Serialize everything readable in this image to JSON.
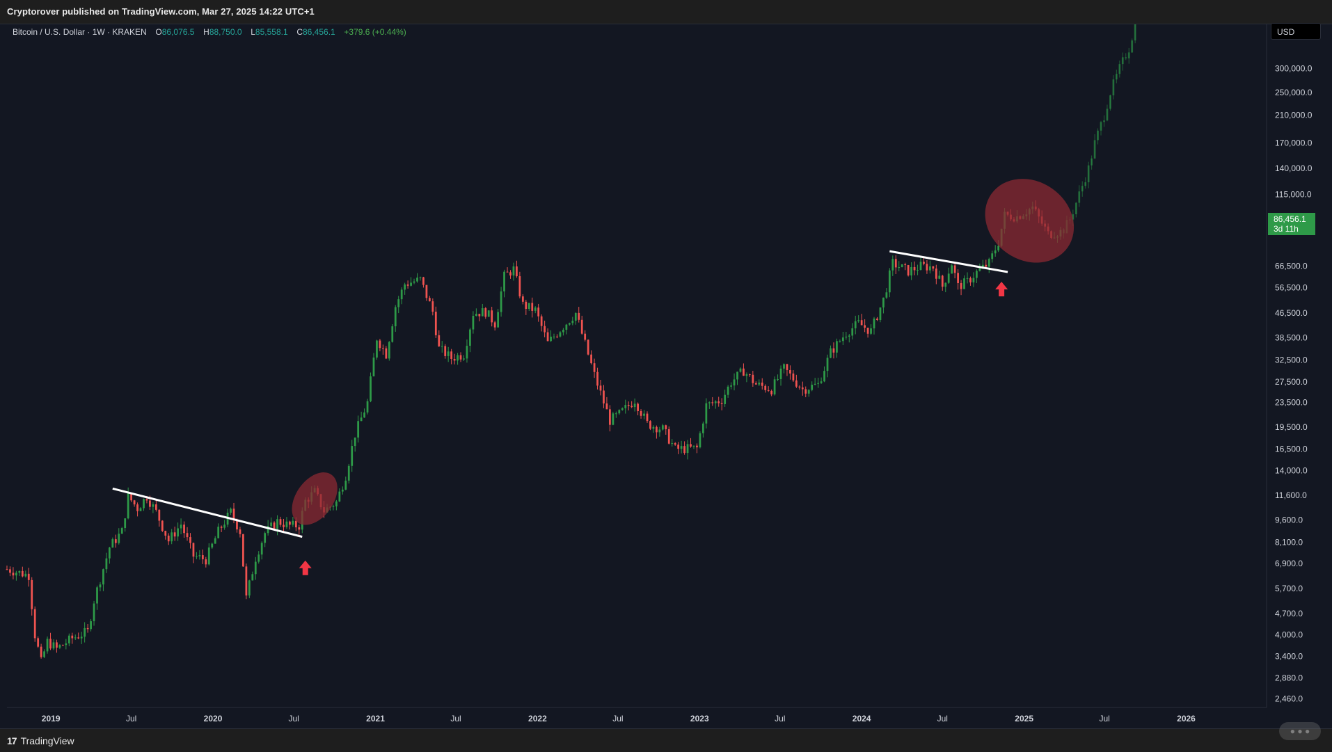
{
  "header": {
    "published": "Cryptorover published on TradingView.com, Mar 27, 2025 14:22 UTC+1"
  },
  "legend": {
    "symbol": "Bitcoin / U.S. Dollar · 1W · KRAKEN",
    "open_label": "O",
    "open": "86,076.5",
    "high_label": "H",
    "high": "88,750.0",
    "low_label": "L",
    "low": "85,558.1",
    "close_label": "C",
    "close": "86,456.1",
    "change": "+379.6 (+0.44%)"
  },
  "currency": "USD",
  "last_price": {
    "value": "86,456.1",
    "countdown": "3d 11h"
  },
  "footer": {
    "brand": "TradingView"
  },
  "colors": {
    "up": "#26a69a",
    "up_green": "#2e9a48",
    "down": "#ef5350",
    "highlight": "#8b2a33",
    "arrow": "#f23645",
    "trendline": "#ffffff"
  },
  "chart_data": {
    "type": "candlestick",
    "title": "",
    "y_scale": "log",
    "ylim": [
      2300,
      420000
    ],
    "xlim": [
      "2018-09-24",
      "2026-07-01"
    ],
    "y_tick_labels": [
      "300,000.0",
      "250,000.0",
      "210,000.0",
      "170,000.0",
      "140,000.0",
      "115,000.0",
      "95,000.0",
      "66,500.0",
      "56,500.0",
      "46,500.0",
      "38,500.0",
      "32,500.0",
      "27,500.0",
      "23,500.0",
      "19,500.0",
      "16,500.0",
      "14,000.0",
      "11,600.0",
      "9,600.0",
      "8,100.0",
      "6,900.0",
      "5,700.0",
      "4,700.0",
      "4,000.0",
      "3,400.0",
      "2,880.0",
      "2,460.0"
    ],
    "x_tick_labels": [
      {
        "label": "2019",
        "date": "2019-01-01",
        "bold": true
      },
      {
        "label": "Jul",
        "date": "2019-07-01",
        "bold": false
      },
      {
        "label": "2020",
        "date": "2020-01-01",
        "bold": true
      },
      {
        "label": "Jul",
        "date": "2020-07-01",
        "bold": false
      },
      {
        "label": "2021",
        "date": "2021-01-01",
        "bold": true
      },
      {
        "label": "Jul",
        "date": "2021-07-01",
        "bold": false
      },
      {
        "label": "2022",
        "date": "2022-01-01",
        "bold": true
      },
      {
        "label": "Jul",
        "date": "2022-07-01",
        "bold": false
      },
      {
        "label": "2023",
        "date": "2023-01-01",
        "bold": true
      },
      {
        "label": "Jul",
        "date": "2023-07-01",
        "bold": false
      },
      {
        "label": "2024",
        "date": "2024-01-01",
        "bold": true
      },
      {
        "label": "Jul",
        "date": "2024-07-01",
        "bold": false
      },
      {
        "label": "2025",
        "date": "2025-01-01",
        "bold": true
      },
      {
        "label": "Jul",
        "date": "2025-07-01",
        "bold": false
      },
      {
        "label": "2026",
        "date": "2026-01-01",
        "bold": true
      }
    ],
    "weekly_close_path": [
      [
        "2018-09-24",
        6600
      ],
      [
        "2018-11-12",
        6300
      ],
      [
        "2018-11-26",
        4000
      ],
      [
        "2018-12-10",
        3250
      ],
      [
        "2018-12-24",
        3800
      ],
      [
        "2019-01-14",
        3600
      ],
      [
        "2019-02-18",
        3900
      ],
      [
        "2019-03-25",
        4100
      ],
      [
        "2019-04-08",
        5200
      ],
      [
        "2019-05-13",
        7800
      ],
      [
        "2019-06-10",
        8800
      ],
      [
        "2019-06-24",
        11500
      ],
      [
        "2019-07-15",
        10500
      ],
      [
        "2019-08-05",
        11500
      ],
      [
        "2019-08-26",
        10200
      ],
      [
        "2019-09-23",
        8200
      ],
      [
        "2019-10-21",
        9300
      ],
      [
        "2019-11-18",
        7300
      ],
      [
        "2019-12-16",
        7100
      ],
      [
        "2020-01-13",
        8800
      ],
      [
        "2020-02-10",
        10200
      ],
      [
        "2020-03-02",
        8800
      ],
      [
        "2020-03-16",
        5300
      ],
      [
        "2020-04-06",
        7200
      ],
      [
        "2020-04-27",
        8700
      ],
      [
        "2020-05-25",
        9500
      ],
      [
        "2020-06-22",
        9200
      ],
      [
        "2020-07-13",
        9200
      ],
      [
        "2020-07-27",
        11100
      ],
      [
        "2020-08-17",
        11900
      ],
      [
        "2020-09-07",
        10300
      ],
      [
        "2020-10-05",
        11000
      ],
      [
        "2020-10-26",
        13500
      ],
      [
        "2020-11-16",
        18500
      ],
      [
        "2020-12-14",
        23500
      ],
      [
        "2021-01-04",
        38500
      ],
      [
        "2021-01-25",
        34000
      ],
      [
        "2021-02-15",
        49000
      ],
      [
        "2021-03-08",
        58000
      ],
      [
        "2021-04-12",
        60000
      ],
      [
        "2021-05-10",
        47000
      ],
      [
        "2021-05-24",
        35500
      ],
      [
        "2021-06-21",
        33000
      ],
      [
        "2021-07-19",
        34000
      ],
      [
        "2021-08-09",
        46500
      ],
      [
        "2021-09-06",
        47000
      ],
      [
        "2021-09-27",
        43000
      ],
      [
        "2021-10-18",
        61500
      ],
      [
        "2021-11-08",
        65000
      ],
      [
        "2021-11-29",
        49500
      ],
      [
        "2021-12-27",
        47500
      ],
      [
        "2022-01-24",
        37000
      ],
      [
        "2022-02-14",
        40000
      ],
      [
        "2022-03-28",
        46500
      ],
      [
        "2022-05-09",
        29000
      ],
      [
        "2022-06-13",
        20500
      ],
      [
        "2022-07-04",
        21500
      ],
      [
        "2022-08-08",
        24000
      ],
      [
        "2022-09-05",
        20000
      ],
      [
        "2022-10-10",
        19200
      ],
      [
        "2022-11-07",
        16500
      ],
      [
        "2022-12-26",
        16600
      ],
      [
        "2023-01-16",
        23000
      ],
      [
        "2023-02-20",
        24000
      ],
      [
        "2023-03-13",
        27500
      ],
      [
        "2023-04-10",
        30000
      ],
      [
        "2023-05-08",
        27000
      ],
      [
        "2023-06-12",
        26000
      ],
      [
        "2023-07-10",
        30500
      ],
      [
        "2023-08-21",
        26000
      ],
      [
        "2023-09-25",
        27000
      ],
      [
        "2023-10-23",
        34500
      ],
      [
        "2023-11-27",
        40000
      ],
      [
        "2023-12-25",
        43000
      ],
      [
        "2024-01-22",
        40500
      ],
      [
        "2024-02-19",
        51500
      ],
      [
        "2024-03-11",
        68000
      ],
      [
        "2024-04-15",
        64000
      ],
      [
        "2024-05-13",
        66500
      ],
      [
        "2024-06-10",
        66000
      ],
      [
        "2024-07-01",
        57000
      ],
      [
        "2024-07-22",
        68000
      ],
      [
        "2024-08-05",
        57000
      ],
      [
        "2024-08-26",
        59000
      ],
      [
        "2024-09-16",
        63500
      ],
      [
        "2024-10-14",
        68000
      ],
      [
        "2024-11-04",
        80000
      ],
      [
        "2024-11-18",
        98000
      ],
      [
        "2024-12-16",
        97000
      ],
      [
        "2025-01-20",
        104000
      ],
      [
        "2025-02-24",
        85000
      ],
      [
        "2025-03-24",
        86456
      ]
    ],
    "projection_path": [
      [
        "2025-03-31",
        88000
      ],
      [
        "2025-04-14",
        95000
      ],
      [
        "2025-05-05",
        115000
      ],
      [
        "2025-05-26",
        140000
      ],
      [
        "2025-06-09",
        170000
      ],
      [
        "2025-06-30",
        210000
      ],
      [
        "2025-07-14",
        250000
      ],
      [
        "2025-08-04",
        300000
      ],
      [
        "2025-08-25",
        350000
      ],
      [
        "2025-09-08",
        420000
      ]
    ],
    "trendlines": [
      {
        "from": [
          "2019-05-20",
          12200
        ],
        "to": [
          "2020-07-20",
          8450
        ]
      },
      {
        "from": [
          "2024-03-04",
          74500
        ],
        "to": [
          "2024-11-25",
          63600
        ]
      }
    ],
    "highlight_ellipses": [
      {
        "center": [
          "2020-08-17",
          11300
        ],
        "span_weeks": 12,
        "span_factor": 1.25
      },
      {
        "center": [
          "2025-01-13",
          94000
        ],
        "span_weeks": 30,
        "span_factor": 1.35
      }
    ],
    "breakout_arrows": [
      {
        "at": [
          "2020-07-27",
          6650
        ]
      },
      {
        "at": [
          "2024-11-11",
          55700
        ]
      }
    ]
  }
}
